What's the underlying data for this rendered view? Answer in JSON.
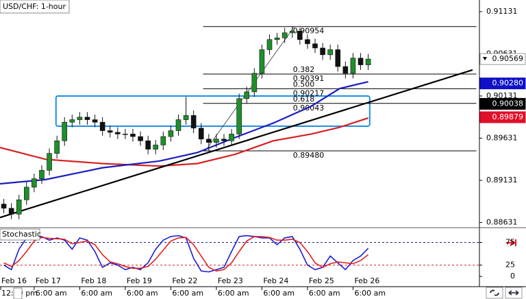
{
  "chart_data": [
    {
      "type": "candlestick",
      "title": "USD/CHF: 1-hour",
      "x": [
        8,
        12,
        16,
        20,
        24,
        28,
        32,
        36,
        40,
        44,
        48,
        52,
        56,
        60,
        64,
        68,
        72,
        76,
        80,
        84,
        88,
        92,
        96,
        100,
        104,
        108,
        112,
        116,
        120,
        124,
        128,
        132,
        136,
        140,
        144,
        148,
        152,
        156,
        160,
        164,
        168,
        172,
        176,
        180,
        184,
        188,
        192,
        196,
        200
      ],
      "open": [
        0.8885,
        0.888,
        0.8873,
        0.889,
        0.8905,
        0.8915,
        0.8925,
        0.8945,
        0.896,
        0.8982,
        0.8985,
        0.8988,
        0.8985,
        0.8982,
        0.8972,
        0.897,
        0.8968,
        0.8968,
        0.8965,
        0.896,
        0.895,
        0.8955,
        0.8965,
        0.8972,
        0.8985,
        0.899,
        0.8975,
        0.8962,
        0.8958,
        0.8962,
        0.896,
        0.8968,
        0.901,
        0.9018,
        0.904,
        0.9068,
        0.908,
        0.9082,
        0.9088,
        0.909,
        0.908,
        0.9075,
        0.907,
        0.9062,
        0.9068,
        0.9048,
        0.904,
        0.9058,
        0.905
      ],
      "high": [
        0.8891,
        0.8886,
        0.8896,
        0.8911,
        0.8921,
        0.8931,
        0.8951,
        0.8966,
        0.8988,
        0.8991,
        0.8994,
        0.8994,
        0.8991,
        0.8988,
        0.8978,
        0.8976,
        0.8974,
        0.8974,
        0.8971,
        0.8966,
        0.8961,
        0.8971,
        0.8978,
        0.8991,
        0.9012,
        0.8996,
        0.8981,
        0.8968,
        0.8968,
        0.8968,
        0.8974,
        0.9016,
        0.9024,
        0.9046,
        0.9074,
        0.9086,
        0.9088,
        0.9094,
        0.90954,
        0.9094,
        0.9086,
        0.9081,
        0.9076,
        0.9074,
        0.9074,
        0.9054,
        0.9064,
        0.9064,
        0.9063
      ],
      "low": [
        0.8874,
        0.8867,
        0.8867,
        0.8884,
        0.8899,
        0.8909,
        0.8919,
        0.8939,
        0.8954,
        0.8976,
        0.8979,
        0.8979,
        0.8976,
        0.8966,
        0.8964,
        0.8962,
        0.8962,
        0.8959,
        0.8954,
        0.8944,
        0.8944,
        0.8949,
        0.8959,
        0.8966,
        0.8979,
        0.8969,
        0.8956,
        0.8948,
        0.8952,
        0.8954,
        0.8954,
        0.8962,
        0.9004,
        0.9012,
        0.9034,
        0.9062,
        0.9074,
        0.9076,
        0.9082,
        0.9074,
        0.9069,
        0.9064,
        0.9056,
        0.9056,
        0.9042,
        0.9034,
        0.9034,
        0.9044,
        0.9044
      ],
      "close": [
        0.888,
        0.8873,
        0.889,
        0.8905,
        0.8915,
        0.8925,
        0.8945,
        0.896,
        0.8982,
        0.8985,
        0.8988,
        0.8985,
        0.8982,
        0.8972,
        0.897,
        0.8968,
        0.8968,
        0.8965,
        0.896,
        0.895,
        0.8955,
        0.8965,
        0.8972,
        0.8985,
        0.899,
        0.8975,
        0.8962,
        0.8958,
        0.8962,
        0.896,
        0.8968,
        0.901,
        0.9018,
        0.904,
        0.9068,
        0.908,
        0.9082,
        0.9088,
        0.909,
        0.908,
        0.9075,
        0.907,
        0.9062,
        0.9068,
        0.9048,
        0.904,
        0.9058,
        0.905,
        0.90569
      ],
      "up_color": "#1f8f2a",
      "down_color": "#111111",
      "overlays": [
        {
          "color": "#d62020",
          "x": [
            6,
            30,
            60,
            90,
            110,
            130,
            150,
            170,
            185,
            200
          ],
          "values": [
            0.8952,
            0.8938,
            0.8933,
            0.893,
            0.8933,
            0.8944,
            0.896,
            0.8968,
            0.8976,
            0.8987
          ]
        },
        {
          "color": "#1c1cc0",
          "x": [
            6,
            30,
            60,
            90,
            110,
            130,
            150,
            170,
            185,
            200
          ],
          "values": [
            0.8909,
            0.8914,
            0.8928,
            0.8936,
            0.8946,
            0.8964,
            0.8981,
            0.9001,
            0.9022,
            0.903
          ]
        }
      ],
      "trendline": {
        "color": "#000000",
        "x": [
          6,
          255
        ],
        "values": [
          0.8869,
          0.9044
        ]
      },
      "fib": {
        "x": [
          113,
          257
        ],
        "swing": {
          "x": [
            114.2,
            161.1
          ],
          "values": [
            0.8948,
            0.90954
          ]
        },
        "levels": [
          {
            "value": 0.90954
          },
          {
            "ratio": "0.382",
            "value": 0.90391
          },
          {
            "ratio": "0.500",
            "value": 0.90217
          },
          {
            "ratio": "0.618",
            "value": 0.90043
          },
          {
            "value": {
              "value": 0.8948,
              "label": "0.89480"
            }
          }
        ]
      },
      "zone": {
        "color": "#1e8fe6",
        "x": [
          35.5,
          200.8
        ],
        "values": [
          0.89773,
          0.90131
        ]
      },
      "xlim": [
        6,
        258.6
      ],
      "ylim": [
        0.88586,
        0.91269
      ],
      "yticks": [
        0.91131,
        0.90631,
        0.90131,
        0.89631,
        0.89131,
        0.88631
      ],
      "xticks": [
        {
          "value": 0,
          "label": "Feb 16"
        },
        {
          "value": 24,
          "label": "Feb 17"
        },
        {
          "value": 48,
          "label": "Feb 18"
        },
        {
          "value": 72,
          "label": "Feb 19"
        },
        {
          "value": 96,
          "label": "Feb 22"
        },
        {
          "value": 120,
          "label": "Feb 23"
        },
        {
          "value": 144,
          "label": "Feb 24"
        },
        {
          "value": 168,
          "label": "Feb 25"
        },
        {
          "value": 192,
          "label": "Feb 26"
        }
      ],
      "xticks2": [
        {
          "value": 0,
          "label": "12:00 pm"
        },
        {
          "value": 24,
          "label": "6:00 am"
        },
        {
          "value": 48,
          "label": "6:00 am"
        },
        {
          "value": 72,
          "label": "6:00 am"
        },
        {
          "value": 96,
          "label": "6:00 am"
        },
        {
          "value": 120,
          "label": "6:00 am"
        },
        {
          "value": 144,
          "label": "6:00 am"
        },
        {
          "value": 168,
          "label": "6:00 am"
        },
        {
          "value": 192,
          "label": "6:00 am"
        }
      ],
      "price_badges": [
        {
          "value": 0.90569,
          "color": "#ffffff",
          "text_color": "#000000"
        },
        {
          "value": {
            "value": 0.9028,
            "label": "0.90280"
          },
          "color": "#1010c8",
          "text_color": "#ffffff"
        },
        {
          "value": 0.90038,
          "color": "#000000",
          "text_color": "#ffffff"
        },
        {
          "value": 0.89879,
          "color": "#e0102a",
          "text_color": "#ffffff"
        }
      ]
    },
    {
      "type": "stochastic",
      "title": "Stochastic",
      "x": [
        8,
        12,
        16,
        20,
        24,
        28,
        32,
        36,
        40,
        44,
        48,
        52,
        56,
        60,
        64,
        68,
        72,
        76,
        80,
        84,
        88,
        92,
        96,
        100,
        104,
        108,
        112,
        116,
        120,
        124,
        128,
        132,
        136,
        140,
        144,
        148,
        152,
        156,
        160,
        164,
        168,
        172,
        176,
        180,
        184,
        188,
        192,
        196,
        200
      ],
      "series": [
        {
          "color": "#1c1cd0",
          "values": [
            25,
            15,
            60,
            85,
            85,
            88,
            80,
            85,
            80,
            60,
            85,
            80,
            55,
            20,
            30,
            25,
            15,
            20,
            15,
            30,
            60,
            80,
            88,
            90,
            85,
            40,
            12,
            10,
            15,
            20,
            55,
            88,
            90,
            88,
            85,
            85,
            70,
            85,
            88,
            60,
            25,
            15,
            20,
            45,
            30,
            15,
            35,
            45,
            62
          ]
        },
        {
          "color": "#e02020",
          "values": [
            30,
            22,
            35,
            55,
            78,
            86,
            84,
            83,
            82,
            72,
            75,
            78,
            70,
            48,
            32,
            28,
            22,
            18,
            18,
            22,
            38,
            58,
            78,
            85,
            86,
            70,
            45,
            20,
            12,
            15,
            30,
            55,
            78,
            88,
            88,
            86,
            80,
            80,
            82,
            75,
            55,
            30,
            20,
            28,
            32,
            30,
            28,
            35,
            48
          ]
        }
      ],
      "levels": [
        {
          "value": 75,
          "color": "#1c1c90"
        },
        {
          "value": 25,
          "color": "#d02020"
        }
      ],
      "xlim": [
        6,
        258.6
      ],
      "ylim": [
        -18,
        103
      ],
      "yticks": [
        75,
        25,
        0
      ]
    }
  ]
}
